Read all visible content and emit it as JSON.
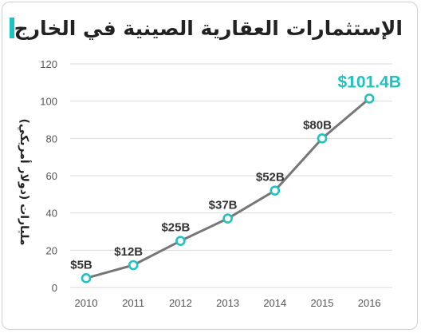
{
  "title": "الإستثمارات العقارية الصينية في الخارج",
  "colors": {
    "accent": "#1fc1c1",
    "line": "#777777",
    "grid": "#d9d9d9"
  },
  "chart_data": {
    "type": "line",
    "title": "الإستثمارات العقارية الصينية في الخارج",
    "xlabel": "",
    "ylabel": "مليارات (دولار أمريكي)",
    "x": [
      "2010",
      "2011",
      "2012",
      "2013",
      "2014",
      "2015",
      "2016"
    ],
    "values": [
      5,
      12,
      25,
      37,
      52,
      80,
      101.4
    ],
    "data_labels": [
      "$5B",
      "$12B",
      "$25B",
      "$37B",
      "$52B",
      "$80B",
      "$101.4B"
    ],
    "yticks": [
      0,
      20,
      40,
      60,
      80,
      100,
      120
    ],
    "ylim": [
      0,
      120
    ],
    "grid": true,
    "highlight_last": true
  }
}
